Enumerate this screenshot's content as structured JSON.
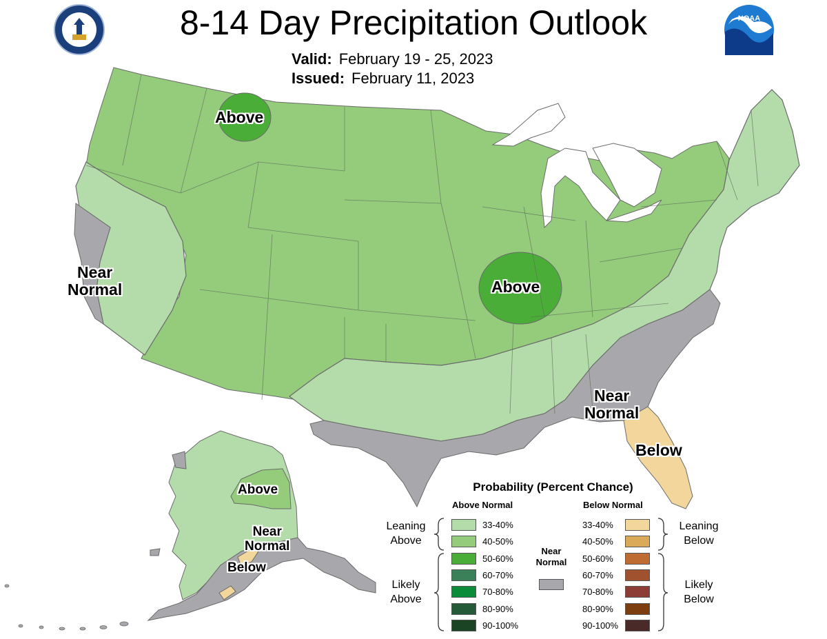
{
  "title": "8-14 Day Precipitation Outlook",
  "valid_label": "Valid:",
  "valid_value": "February 19 - 25, 2023",
  "issued_label": "Issued:",
  "issued_value": "February 11, 2023",
  "seal_icon": "department-of-commerce-seal",
  "noaa_icon": "noaa-logo",
  "map_labels": {
    "montana_above": "Above",
    "missouri_above": "Above",
    "california_near_1": "Near",
    "california_near_2": "Normal",
    "southeast_near_1": "Near",
    "southeast_near_2": "Normal",
    "florida_below": "Below",
    "alaska_above": "Above",
    "alaska_near_1": "Near",
    "alaska_near_2": "Normal",
    "alaska_below": "Below"
  },
  "legend": {
    "title": "Probability (Percent Chance)",
    "above_header": "Above Normal",
    "below_header": "Below Normal",
    "near_header_1": "Near",
    "near_header_2": "Normal",
    "leaning_above_1": "Leaning",
    "leaning_above_2": "Above",
    "likely_above_1": "Likely",
    "likely_above_2": "Above",
    "leaning_below_1": "Leaning",
    "leaning_below_2": "Below",
    "likely_below_1": "Likely",
    "likely_below_2": "Below",
    "above_ranges": [
      "33-40%",
      "40-50%",
      "50-60%",
      "60-70%",
      "70-80%",
      "80-90%",
      "90-100%"
    ],
    "below_ranges": [
      "33-40%",
      "40-50%",
      "50-60%",
      "60-70%",
      "70-80%",
      "80-90%",
      "90-100%"
    ],
    "above_colors": [
      "#b4dcaa",
      "#94cc7c",
      "#4aad38",
      "#3a8058",
      "#0a8c38",
      "#255a38",
      "#1a4424"
    ],
    "below_colors": [
      "#f2d69c",
      "#dbaa58",
      "#be6c32",
      "#a0522e",
      "#8c3e36",
      "#7c3e0e",
      "#4a2a28"
    ],
    "near_color": "#a8a8ac"
  },
  "region_colors": {
    "above_40_50": "#94cc7c",
    "above_33_40": "#b4dcaa",
    "above_50_60": "#4aad38",
    "near_normal": "#a8a8ac",
    "below_33_40": "#f2d69c"
  }
}
